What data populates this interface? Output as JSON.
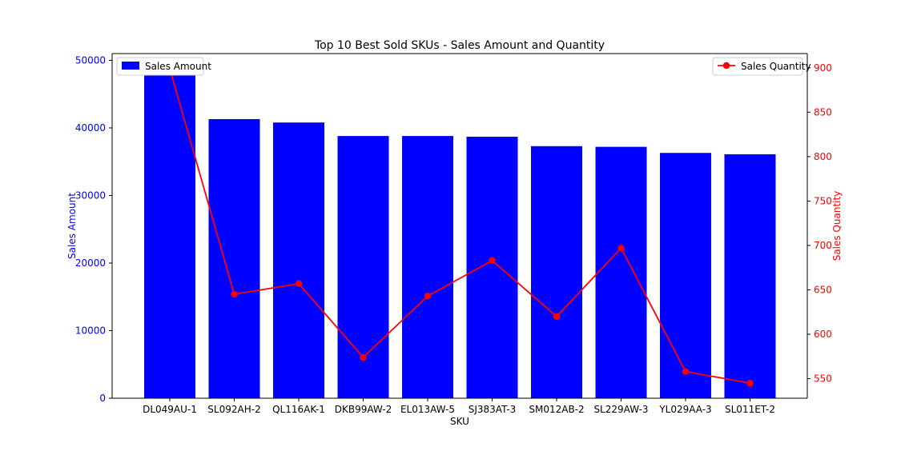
{
  "chart_data": {
    "type": "bar",
    "title": "Top 10 Best Sold SKUs - Sales Amount and Quantity",
    "xlabel": "SKU",
    "categories": [
      "DL049AU-1",
      "SL092AH-2",
      "QL116AK-1",
      "DKB99AW-2",
      "EL013AW-5",
      "SJ383AT-3",
      "SM012AB-2",
      "SL229AW-3",
      "YL029AA-3",
      "SL011ET-2"
    ],
    "series": [
      {
        "name": "Sales Amount",
        "type": "bar",
        "axis": "left",
        "color": "#0000ff",
        "values": [
          48600,
          41300,
          40800,
          38800,
          38800,
          38700,
          37300,
          37200,
          36300,
          36100
        ]
      },
      {
        "name": "Sales Quantity",
        "type": "line",
        "axis": "right",
        "color": "#ff0000",
        "values": [
          899,
          645,
          657,
          574,
          643,
          683,
          620,
          697,
          558,
          545
        ]
      }
    ],
    "y_left": {
      "label": "Sales Amount",
      "color": "#0000ff",
      "min": 0,
      "max": 51000,
      "ticks": [
        0,
        10000,
        20000,
        30000,
        40000,
        50000
      ]
    },
    "y_right": {
      "label": "Sales Quantity",
      "color": "#ff0000",
      "min": 528,
      "max": 916,
      "ticks": [
        550,
        600,
        650,
        700,
        750,
        800,
        850,
        900
      ]
    },
    "legends": [
      {
        "label": "Sales Amount",
        "placement": "upper-left"
      },
      {
        "label": "Sales Quantity",
        "placement": "upper-right"
      }
    ],
    "grid": false
  }
}
